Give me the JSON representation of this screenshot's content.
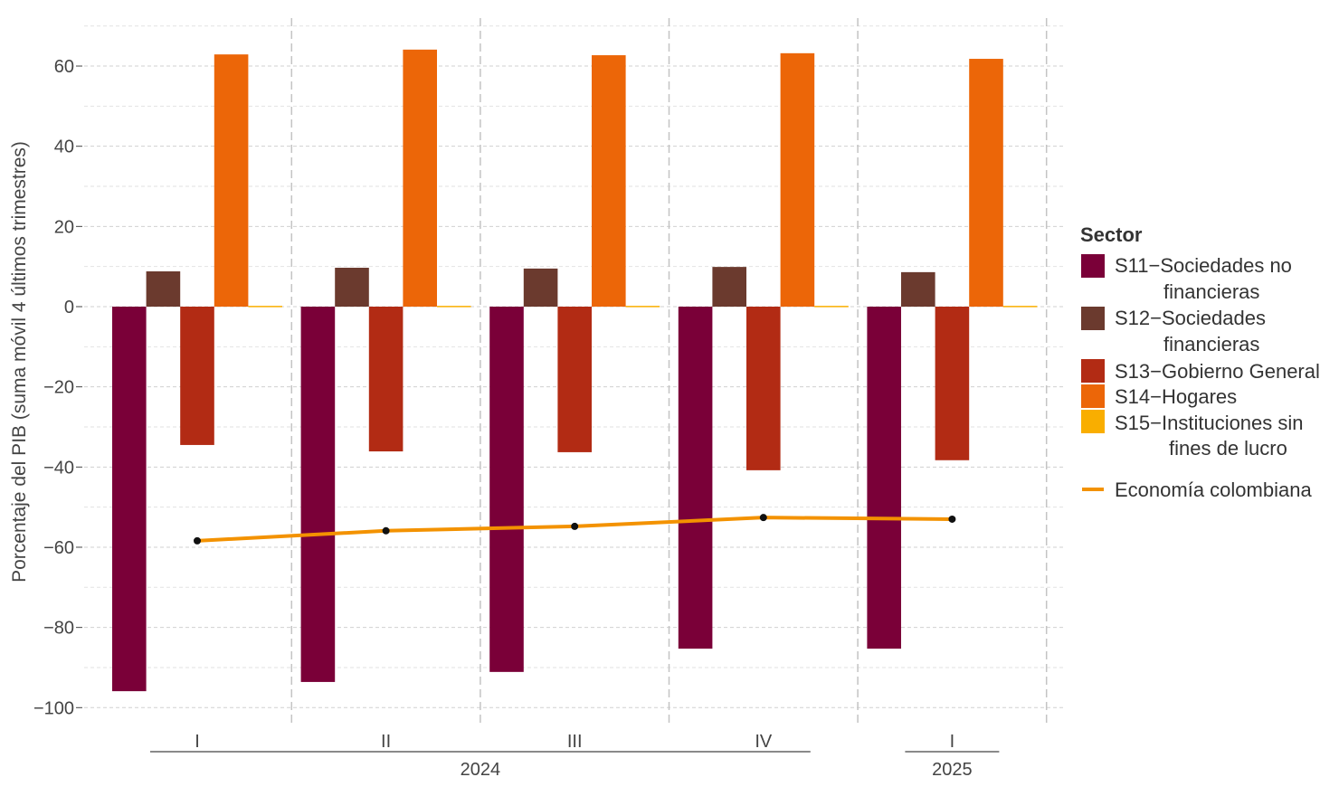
{
  "chart_data": {
    "type": "bar",
    "ylabel": "Porcentaje del PIB (suma móvil 4 últimos trimestres)",
    "xlabel": "",
    "ylim": [
      -102,
      70
    ],
    "yticks": [
      -100,
      -80,
      -60,
      -40,
      -20,
      0,
      20,
      40,
      60
    ],
    "grid": true,
    "categories": [
      "I",
      "II",
      "III",
      "IV",
      "I"
    ],
    "years": [
      {
        "label": "2024",
        "span": [
          0,
          3
        ]
      },
      {
        "label": "2025",
        "span": [
          4,
          4
        ]
      }
    ],
    "series": [
      {
        "name": "S11−Sociedades no financieras",
        "color": "#7a0038",
        "values": [
          -95.9,
          -93.6,
          -91.1,
          -85.3,
          -85.3
        ]
      },
      {
        "name": "S12−Sociedades financieras",
        "color": "#6b3a2e",
        "values": [
          8.8,
          9.7,
          9.5,
          9.9,
          8.6
        ]
      },
      {
        "name": "S13−Gobierno General",
        "color": "#b22b14",
        "values": [
          -34.5,
          -36.1,
          -36.3,
          -40.8,
          -38.3
        ]
      },
      {
        "name": "S14−Hogares",
        "color": "#ec6608",
        "values": [
          62.9,
          64.1,
          62.7,
          63.2,
          61.8
        ]
      },
      {
        "name": "S15−Instituciones sin fines de lucro",
        "color": "#f9ae00",
        "values": [
          0.2,
          0.2,
          0.2,
          0.2,
          0.2
        ]
      }
    ],
    "line": {
      "name": "Economía colombiana",
      "color": "#f39200",
      "values": [
        -58.4,
        -55.9,
        -54.8,
        -52.6,
        -53.0
      ]
    },
    "legend": {
      "title": "Sector",
      "position": "right",
      "labels": [
        [
          "S11−Sociedades no",
          "financieras"
        ],
        [
          "S12−Sociedades",
          "financieras"
        ],
        [
          "S13−Gobierno General"
        ],
        [
          "S14−Hogares"
        ],
        [
          "S15−Instituciones sin",
          "fines de lucro"
        ]
      ]
    }
  }
}
